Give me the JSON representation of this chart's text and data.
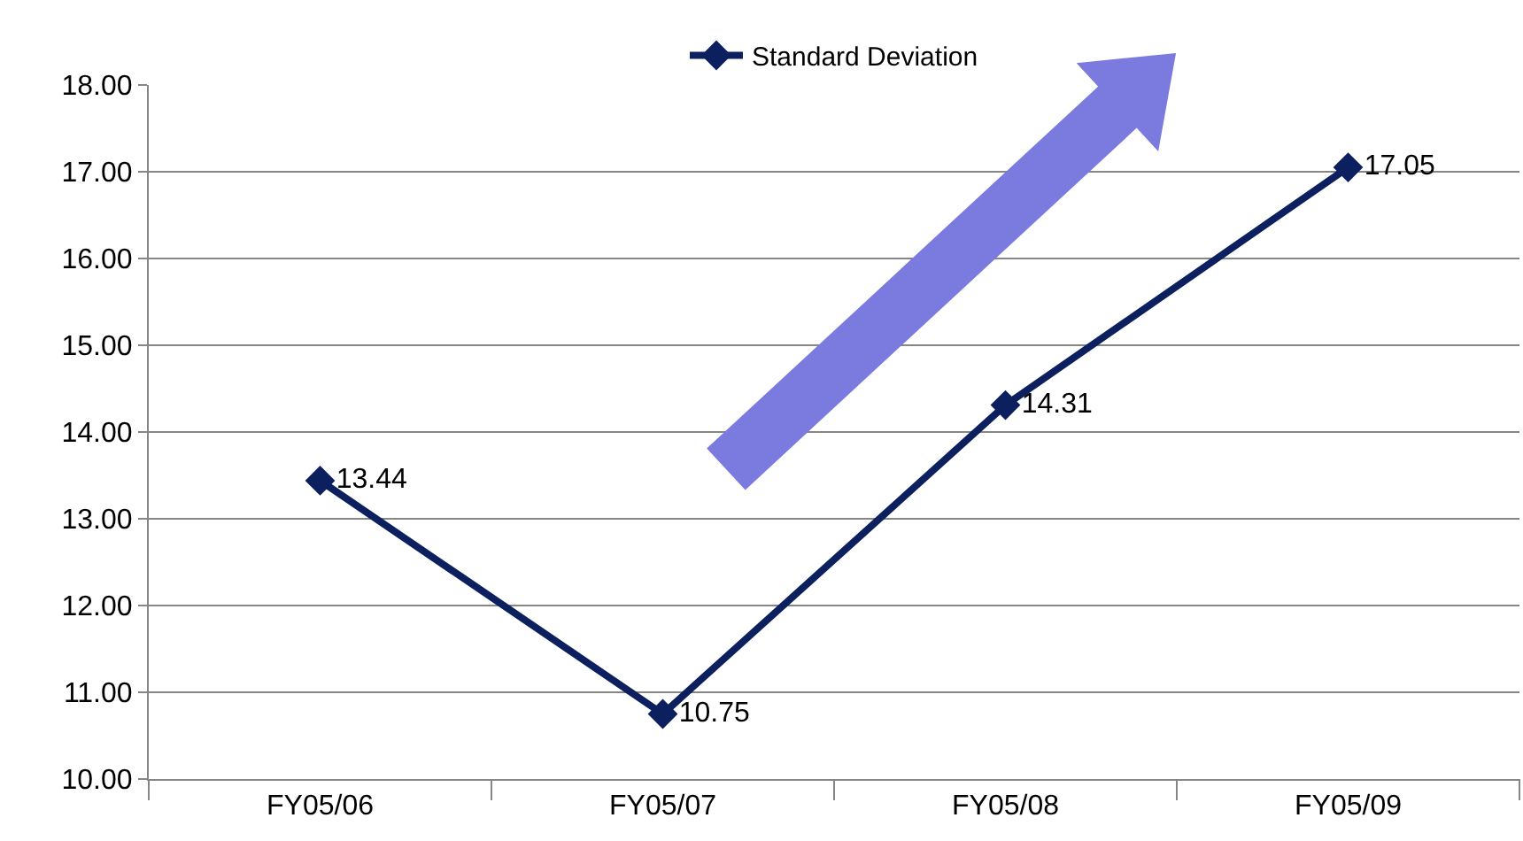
{
  "chart_data": {
    "type": "line",
    "categories": [
      "FY05/06",
      "FY05/07",
      "FY05/08",
      "FY05/09"
    ],
    "series": [
      {
        "name": "Standard Deviation",
        "color": "#0c1f5e",
        "values": [
          13.44,
          10.75,
          14.31,
          17.05
        ]
      }
    ],
    "ylim": [
      10,
      18
    ],
    "yticks": [
      {
        "value": 10,
        "label": "10.00"
      },
      {
        "value": 11,
        "label": "11.00"
      },
      {
        "value": 12,
        "label": "12.00"
      },
      {
        "value": 13,
        "label": "13.00"
      },
      {
        "value": 14,
        "label": "14.00"
      },
      {
        "value": 15,
        "label": "15.00"
      },
      {
        "value": 16,
        "label": "16.00"
      },
      {
        "value": 17,
        "label": "17.00"
      },
      {
        "value": 18,
        "label": "18.00"
      }
    ],
    "grid": "y",
    "legend": "top",
    "marker": "diamond",
    "line_style": "solid",
    "data_labels": true
  }
}
